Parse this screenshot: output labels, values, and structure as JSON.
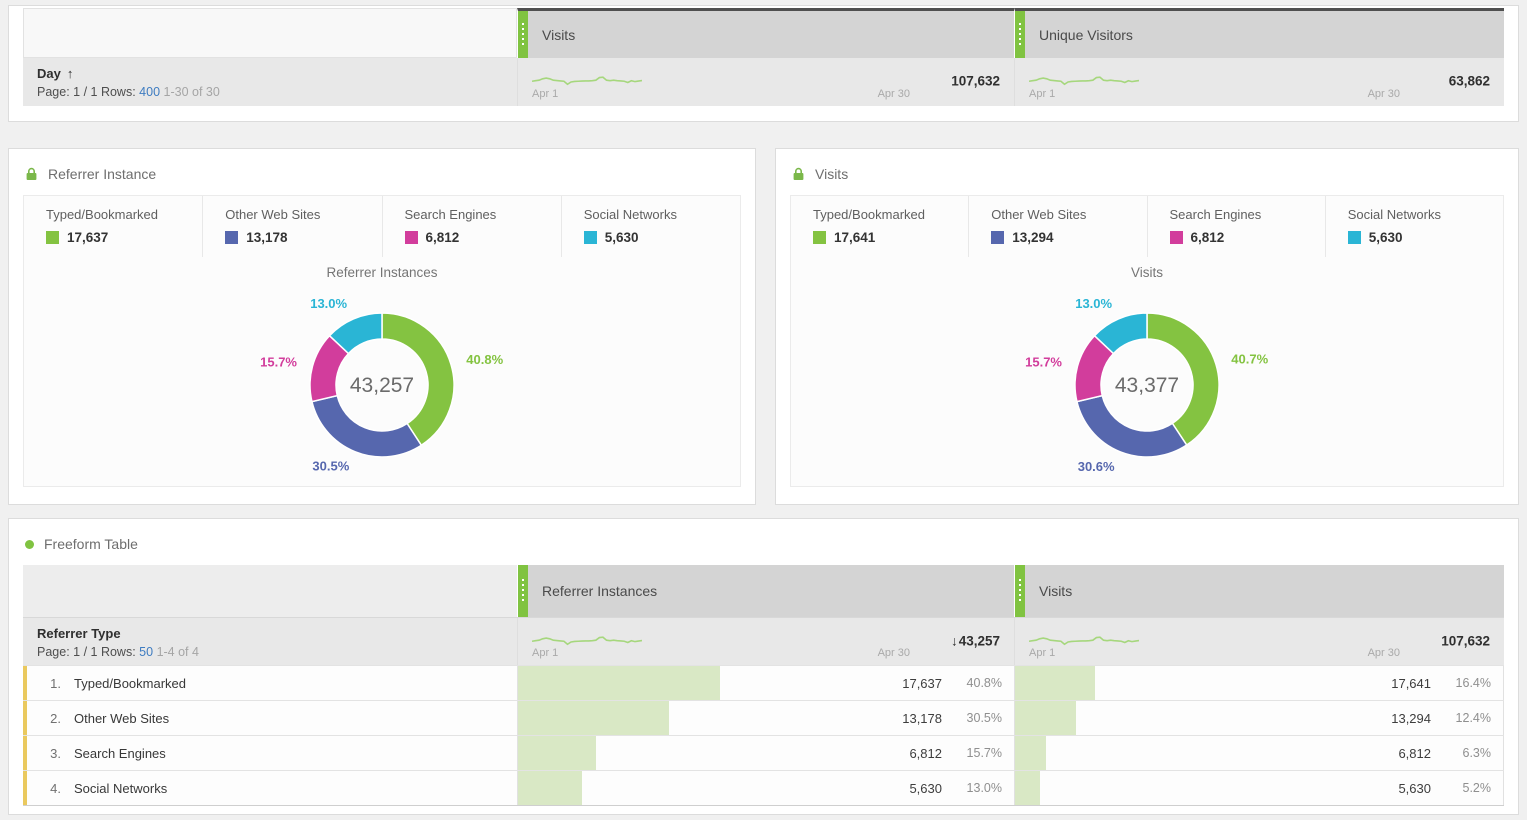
{
  "colors": {
    "accent_green": "#80c341",
    "sparkline": "#a6d77d",
    "bar_fill": "#d9e8c5",
    "row_accent": "#eac95e",
    "link_blue": "#3e7cc1",
    "header_gray": "#d4d4d4",
    "totals_gray": "#e8e8e8"
  },
  "top_table": {
    "dimension_label": "Day",
    "sort_arrow": "↑",
    "pagination": {
      "page_label": "Page: 1 / 1",
      "rows_label": "Rows:",
      "rows_value": "400",
      "range": "1-30 of 30"
    },
    "columns": [
      {
        "label": "Visits",
        "total": "107,632",
        "start_label": "Apr 1",
        "end_label": "Apr 30"
      },
      {
        "label": "Unique Visitors",
        "total": "63,862",
        "start_label": "Apr 1",
        "end_label": "Apr 30"
      }
    ]
  },
  "panels": [
    {
      "title": "Referrer Instance",
      "locked": true
    },
    {
      "title": "Visits",
      "locked": true
    }
  ],
  "freeform": {
    "title": "Freeform Table",
    "dimension_label": "Referrer Type",
    "pagination": {
      "page_label": "Page: 1 / 1",
      "rows_label": "Rows:",
      "rows_value": "50",
      "range": "1-4 of 4"
    },
    "columns": [
      {
        "label": "Referrer Instances",
        "total": "43,257",
        "sort_arrow": "↓",
        "start_label": "Apr 1",
        "end_label": "Apr 30"
      },
      {
        "label": "Visits",
        "total": "107,632",
        "sort_arrow": "",
        "start_label": "Apr 1",
        "end_label": "Apr 30"
      }
    ],
    "rows": [
      {
        "index": "1.",
        "name": "Typed/Bookmarked",
        "cols": [
          {
            "value": "17,637",
            "pct": "40.8%",
            "bar_pct": 40.8
          },
          {
            "value": "17,641",
            "pct": "16.4%",
            "bar_pct": 16.4
          }
        ]
      },
      {
        "index": "2.",
        "name": "Other Web Sites",
        "cols": [
          {
            "value": "13,178",
            "pct": "30.5%",
            "bar_pct": 30.5
          },
          {
            "value": "13,294",
            "pct": "12.4%",
            "bar_pct": 12.4
          }
        ]
      },
      {
        "index": "3.",
        "name": "Search Engines",
        "cols": [
          {
            "value": "6,812",
            "pct": "15.7%",
            "bar_pct": 15.7
          },
          {
            "value": "6,812",
            "pct": "6.3%",
            "bar_pct": 6.3
          }
        ]
      },
      {
        "index": "4.",
        "name": "Social Networks",
        "cols": [
          {
            "value": "5,630",
            "pct": "13.0%",
            "bar_pct": 13.0
          },
          {
            "value": "5,630",
            "pct": "5.2%",
            "bar_pct": 5.2
          }
        ]
      }
    ]
  },
  "chart_data": [
    {
      "id": "referrer-instances-donut",
      "type": "pie",
      "title": "Referrer Instances",
      "center_total": "43,257",
      "categories": [
        "Typed/Bookmarked",
        "Other Web Sites",
        "Search Engines",
        "Social Networks"
      ],
      "values": [
        17637,
        13178,
        6812,
        5630
      ],
      "percents": [
        40.8,
        30.5,
        15.7,
        13.0
      ],
      "legend_values": [
        "17,637",
        "13,178",
        "6,812",
        "5,630"
      ],
      "colors": [
        "#84c341",
        "#5667ae",
        "#d23d9c",
        "#2ab5d5"
      ],
      "legend_position": "top"
    },
    {
      "id": "visits-donut",
      "type": "pie",
      "title": "Visits",
      "center_total": "43,377",
      "categories": [
        "Typed/Bookmarked",
        "Other Web Sites",
        "Search Engines",
        "Social Networks"
      ],
      "values": [
        17641,
        13294,
        6812,
        5630
      ],
      "percents": [
        40.7,
        30.6,
        15.7,
        13.0
      ],
      "legend_values": [
        "17,641",
        "13,294",
        "6,812",
        "5,630"
      ],
      "colors": [
        "#84c341",
        "#5667ae",
        "#d23d9c",
        "#2ab5d5"
      ],
      "legend_position": "top"
    },
    {
      "id": "trend-sparklines",
      "type": "line",
      "x_range": [
        "Apr 1",
        "Apr 30"
      ],
      "series": [
        {
          "name": "Visits (top table)",
          "total": 107632
        },
        {
          "name": "Unique Visitors (top table)",
          "total": 63862
        },
        {
          "name": "Referrer Instances (freeform)",
          "total": 43257
        },
        {
          "name": "Visits (freeform)",
          "total": 107632
        }
      ],
      "shape_normalized": [
        0.44,
        0.47,
        0.5,
        0.58,
        0.62,
        0.58,
        0.5,
        0.48,
        0.46,
        0.44,
        0.27,
        0.4,
        0.43,
        0.44,
        0.45,
        0.46,
        0.46,
        0.47,
        0.5,
        0.65,
        0.67,
        0.5,
        0.47,
        0.5,
        0.47,
        0.46,
        0.44,
        0.37,
        0.47,
        0.42,
        0.45,
        0.48
      ]
    }
  ]
}
